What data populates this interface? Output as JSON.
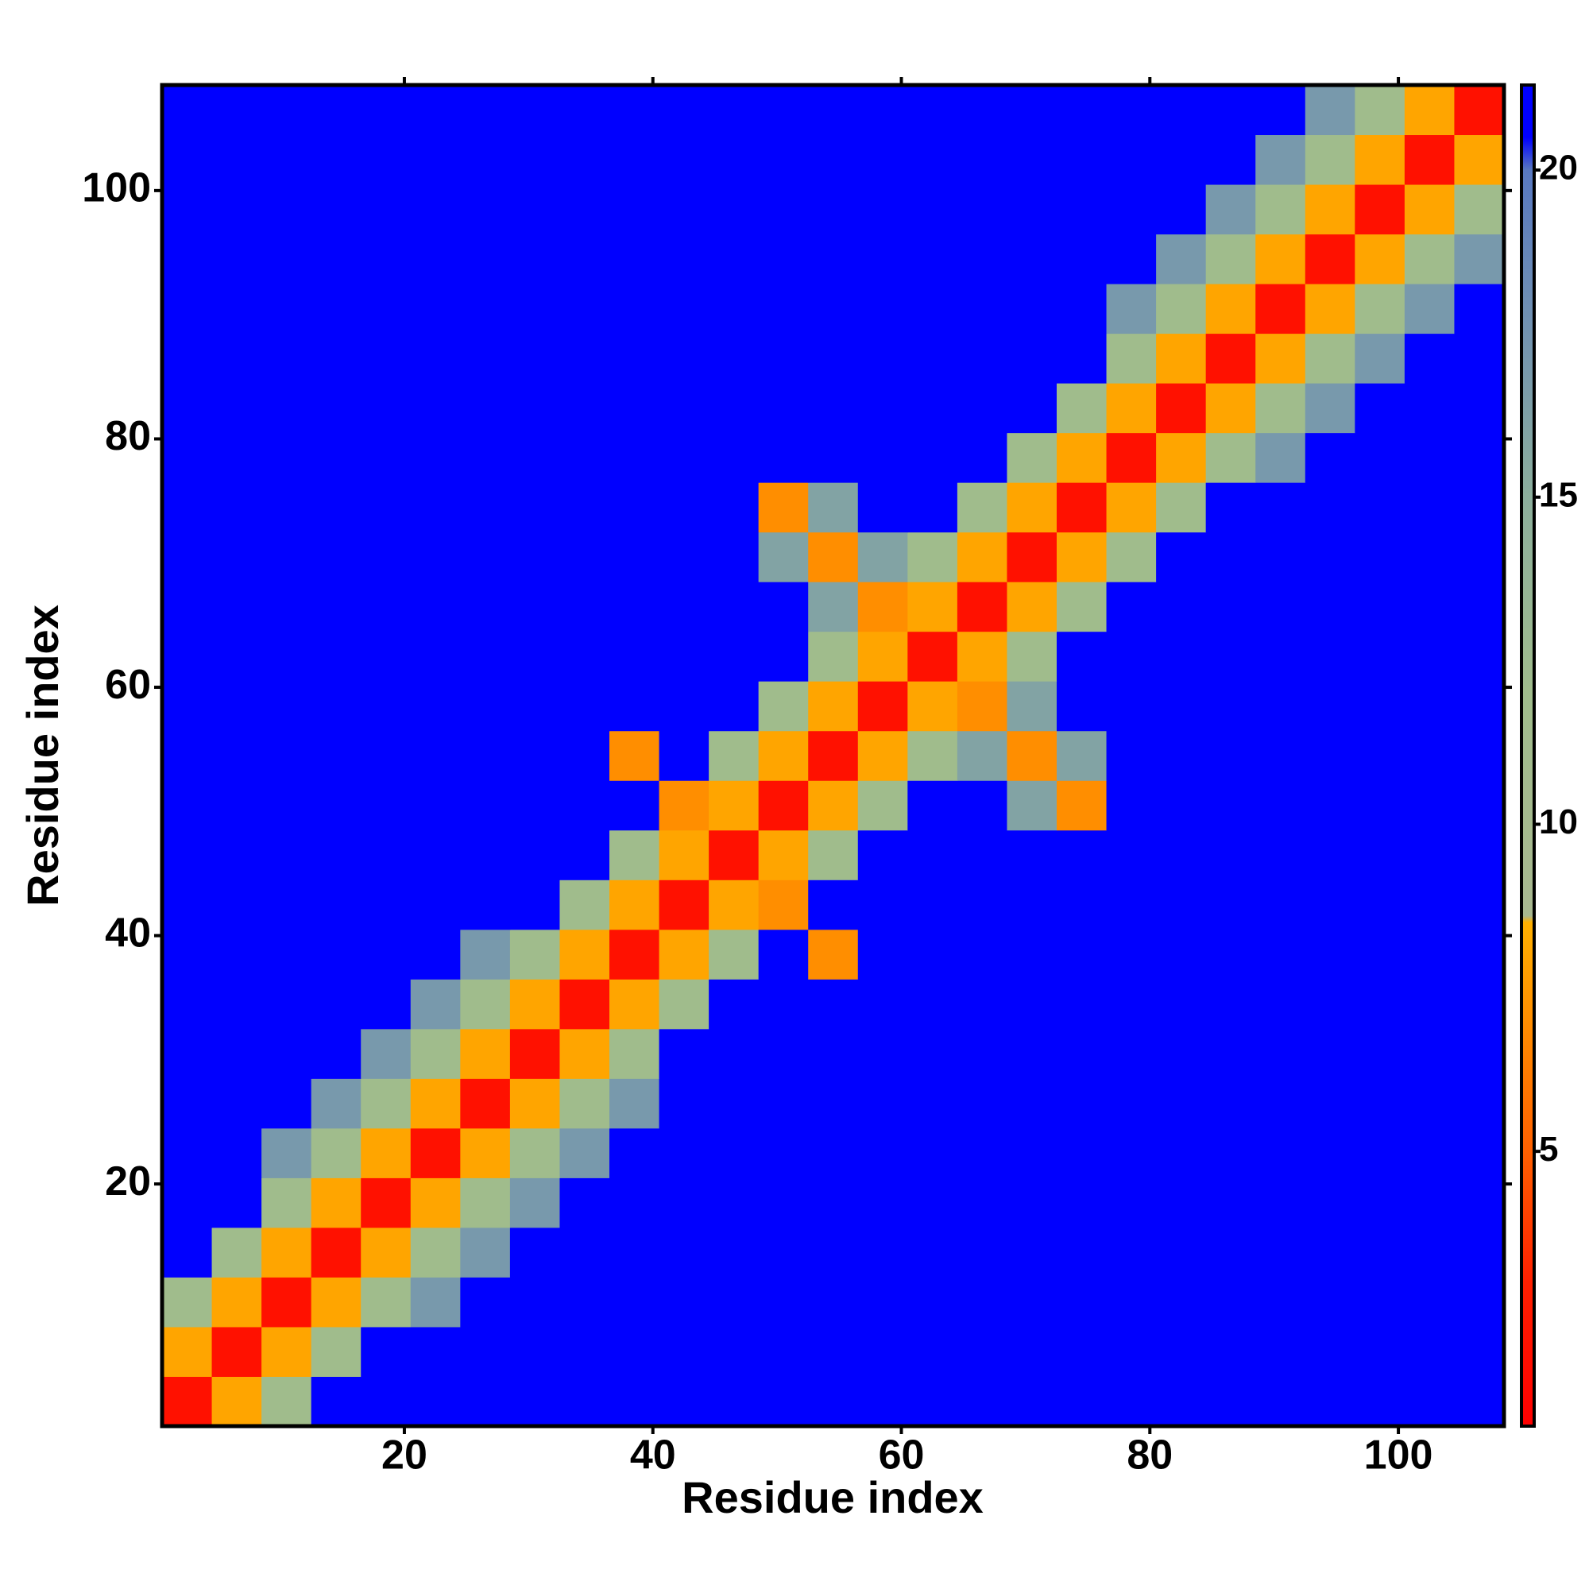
{
  "chart_data": {
    "type": "heatmap",
    "xlabel": "Residue index",
    "ylabel": "Residue index",
    "x": [
      2.5,
      6.5,
      10.5,
      14.5,
      18.5,
      22.5,
      26.5,
      30.5,
      34.5,
      38.5,
      42.5,
      46.5,
      50.5,
      54.5,
      58.5,
      62.5,
      66.5,
      70.5,
      74.5,
      78.5,
      82.5,
      86.5,
      90.5,
      94.5,
      98.5,
      102.5,
      106.5
    ],
    "y": [
      2.5,
      6.5,
      10.5,
      14.5,
      18.5,
      22.5,
      26.5,
      30.5,
      34.5,
      38.5,
      42.5,
      46.5,
      50.5,
      54.5,
      58.5,
      62.5,
      66.5,
      70.5,
      74.5,
      78.5,
      82.5,
      86.5,
      90.5,
      94.5,
      98.5,
      102.5,
      106.5
    ],
    "z": [
      [
        2,
        8,
        12,
        22,
        22,
        22,
        22,
        22,
        22,
        22,
        22,
        22,
        22,
        22,
        22,
        22,
        22,
        22,
        22,
        22,
        22,
        22,
        22,
        22,
        22,
        22,
        22
      ],
      [
        8,
        2,
        8,
        12,
        22,
        22,
        22,
        22,
        22,
        22,
        22,
        22,
        22,
        22,
        22,
        22,
        22,
        22,
        22,
        22,
        22,
        22,
        22,
        22,
        22,
        22,
        22
      ],
      [
        12,
        8,
        2,
        8,
        12,
        17,
        22,
        22,
        22,
        22,
        22,
        22,
        22,
        22,
        22,
        22,
        22,
        22,
        22,
        22,
        22,
        22,
        22,
        22,
        22,
        22,
        22
      ],
      [
        22,
        12,
        8,
        2,
        8,
        12,
        17,
        22,
        22,
        22,
        22,
        22,
        22,
        22,
        22,
        22,
        22,
        22,
        22,
        22,
        22,
        22,
        22,
        22,
        22,
        22,
        22
      ],
      [
        22,
        22,
        12,
        8,
        2,
        8,
        12,
        17,
        22,
        22,
        22,
        22,
        22,
        22,
        22,
        22,
        22,
        22,
        22,
        22,
        22,
        22,
        22,
        22,
        22,
        22,
        22
      ],
      [
        22,
        22,
        17,
        12,
        8,
        2,
        8,
        12,
        17,
        22,
        22,
        22,
        22,
        22,
        22,
        22,
        22,
        22,
        22,
        22,
        22,
        22,
        22,
        22,
        22,
        22,
        22
      ],
      [
        22,
        22,
        22,
        17,
        12,
        8,
        2,
        8,
        12,
        17,
        22,
        22,
        22,
        22,
        22,
        22,
        22,
        22,
        22,
        22,
        22,
        22,
        22,
        22,
        22,
        22,
        22
      ],
      [
        22,
        22,
        22,
        22,
        17,
        12,
        8,
        2,
        8,
        12,
        22,
        22,
        22,
        22,
        22,
        22,
        22,
        22,
        22,
        22,
        22,
        22,
        22,
        22,
        22,
        22,
        22
      ],
      [
        22,
        22,
        22,
        22,
        22,
        17,
        12,
        8,
        2,
        8,
        12,
        22,
        22,
        22,
        22,
        22,
        22,
        22,
        22,
        22,
        22,
        22,
        22,
        22,
        22,
        22,
        22
      ],
      [
        22,
        22,
        22,
        22,
        22,
        22,
        17,
        12,
        8,
        2,
        8,
        12,
        22,
        7,
        22,
        22,
        22,
        22,
        22,
        22,
        22,
        22,
        22,
        22,
        22,
        22,
        22
      ],
      [
        22,
        22,
        22,
        22,
        22,
        22,
        22,
        22,
        12,
        8,
        2,
        8,
        7,
        22,
        22,
        22,
        22,
        22,
        22,
        22,
        22,
        22,
        22,
        22,
        22,
        22,
        22
      ],
      [
        22,
        22,
        22,
        22,
        22,
        22,
        22,
        22,
        22,
        12,
        8,
        2,
        8,
        12,
        22,
        22,
        22,
        22,
        22,
        22,
        22,
        22,
        22,
        22,
        22,
        22,
        22
      ],
      [
        22,
        22,
        22,
        22,
        22,
        22,
        22,
        22,
        22,
        22,
        7,
        8,
        2,
        8,
        12,
        22,
        22,
        16,
        7,
        22,
        22,
        22,
        22,
        22,
        22,
        22,
        22
      ],
      [
        22,
        22,
        22,
        22,
        22,
        22,
        22,
        22,
        22,
        7,
        22,
        12,
        8,
        2,
        8,
        12,
        16,
        7,
        16,
        22,
        22,
        22,
        22,
        22,
        22,
        22,
        22
      ],
      [
        22,
        22,
        22,
        22,
        22,
        22,
        22,
        22,
        22,
        22,
        22,
        22,
        12,
        8,
        2,
        8,
        7,
        16,
        22,
        22,
        22,
        22,
        22,
        22,
        22,
        22,
        22
      ],
      [
        22,
        22,
        22,
        22,
        22,
        22,
        22,
        22,
        22,
        22,
        22,
        22,
        22,
        12,
        8,
        2,
        8,
        12,
        22,
        22,
        22,
        22,
        22,
        22,
        22,
        22,
        22
      ],
      [
        22,
        22,
        22,
        22,
        22,
        22,
        22,
        22,
        22,
        22,
        22,
        22,
        22,
        16,
        7,
        8,
        2,
        8,
        12,
        22,
        22,
        22,
        22,
        22,
        22,
        22,
        22
      ],
      [
        22,
        22,
        22,
        22,
        22,
        22,
        22,
        22,
        22,
        22,
        22,
        22,
        16,
        7,
        16,
        12,
        8,
        2,
        8,
        12,
        22,
        22,
        22,
        22,
        22,
        22,
        22
      ],
      [
        22,
        22,
        22,
        22,
        22,
        22,
        22,
        22,
        22,
        22,
        22,
        22,
        7,
        16,
        22,
        22,
        12,
        8,
        2,
        8,
        12,
        22,
        22,
        22,
        22,
        22,
        22
      ],
      [
        22,
        22,
        22,
        22,
        22,
        22,
        22,
        22,
        22,
        22,
        22,
        22,
        22,
        22,
        22,
        22,
        22,
        12,
        8,
        2,
        8,
        12,
        17,
        22,
        22,
        22,
        22
      ],
      [
        22,
        22,
        22,
        22,
        22,
        22,
        22,
        22,
        22,
        22,
        22,
        22,
        22,
        22,
        22,
        22,
        22,
        22,
        12,
        8,
        2,
        8,
        12,
        17,
        22,
        22,
        22
      ],
      [
        22,
        22,
        22,
        22,
        22,
        22,
        22,
        22,
        22,
        22,
        22,
        22,
        22,
        22,
        22,
        22,
        22,
        22,
        22,
        12,
        8,
        2,
        8,
        12,
        17,
        22,
        22
      ],
      [
        22,
        22,
        22,
        22,
        22,
        22,
        22,
        22,
        22,
        22,
        22,
        22,
        22,
        22,
        22,
        22,
        22,
        22,
        22,
        17,
        12,
        8,
        2,
        8,
        12,
        17,
        22
      ],
      [
        22,
        22,
        22,
        22,
        22,
        22,
        22,
        22,
        22,
        22,
        22,
        22,
        22,
        22,
        22,
        22,
        22,
        22,
        22,
        22,
        17,
        12,
        8,
        2,
        8,
        12,
        17
      ],
      [
        22,
        22,
        22,
        22,
        22,
        22,
        22,
        22,
        22,
        22,
        22,
        22,
        22,
        22,
        22,
        22,
        22,
        22,
        22,
        22,
        22,
        17,
        12,
        8,
        2,
        8,
        12
      ],
      [
        22,
        22,
        22,
        22,
        22,
        22,
        22,
        22,
        22,
        22,
        22,
        22,
        22,
        22,
        22,
        22,
        22,
        22,
        22,
        22,
        22,
        22,
        17,
        12,
        8,
        2,
        8
      ],
      [
        22,
        22,
        22,
        22,
        22,
        22,
        22,
        22,
        22,
        22,
        22,
        22,
        22,
        22,
        22,
        22,
        22,
        22,
        22,
        22,
        22,
        22,
        22,
        17,
        12,
        8,
        2
      ]
    ],
    "xlim": [
      0.5,
      108.5
    ],
    "ylim": [
      0.5,
      108.5
    ],
    "xticks": [
      20,
      40,
      60,
      80,
      100
    ],
    "yticks": [
      20,
      40,
      60,
      80,
      100
    ],
    "zlim": [
      0.8,
      21.3
    ],
    "zticks": [
      5,
      10,
      15,
      20
    ],
    "colorscale": [
      [
        0.8,
        "#ff0000"
      ],
      [
        3,
        "#ff2000"
      ],
      [
        5,
        "#ff6000"
      ],
      [
        8.5,
        "#ffb000"
      ],
      [
        8.6,
        "#a8b890"
      ],
      [
        12,
        "#a0bc8c"
      ],
      [
        15,
        "#8cae9c"
      ],
      [
        18,
        "#6e8eb4"
      ],
      [
        20,
        "#5878c0"
      ],
      [
        20.5,
        "#0000ff"
      ],
      [
        21.3,
        "#0000ff"
      ]
    ]
  }
}
